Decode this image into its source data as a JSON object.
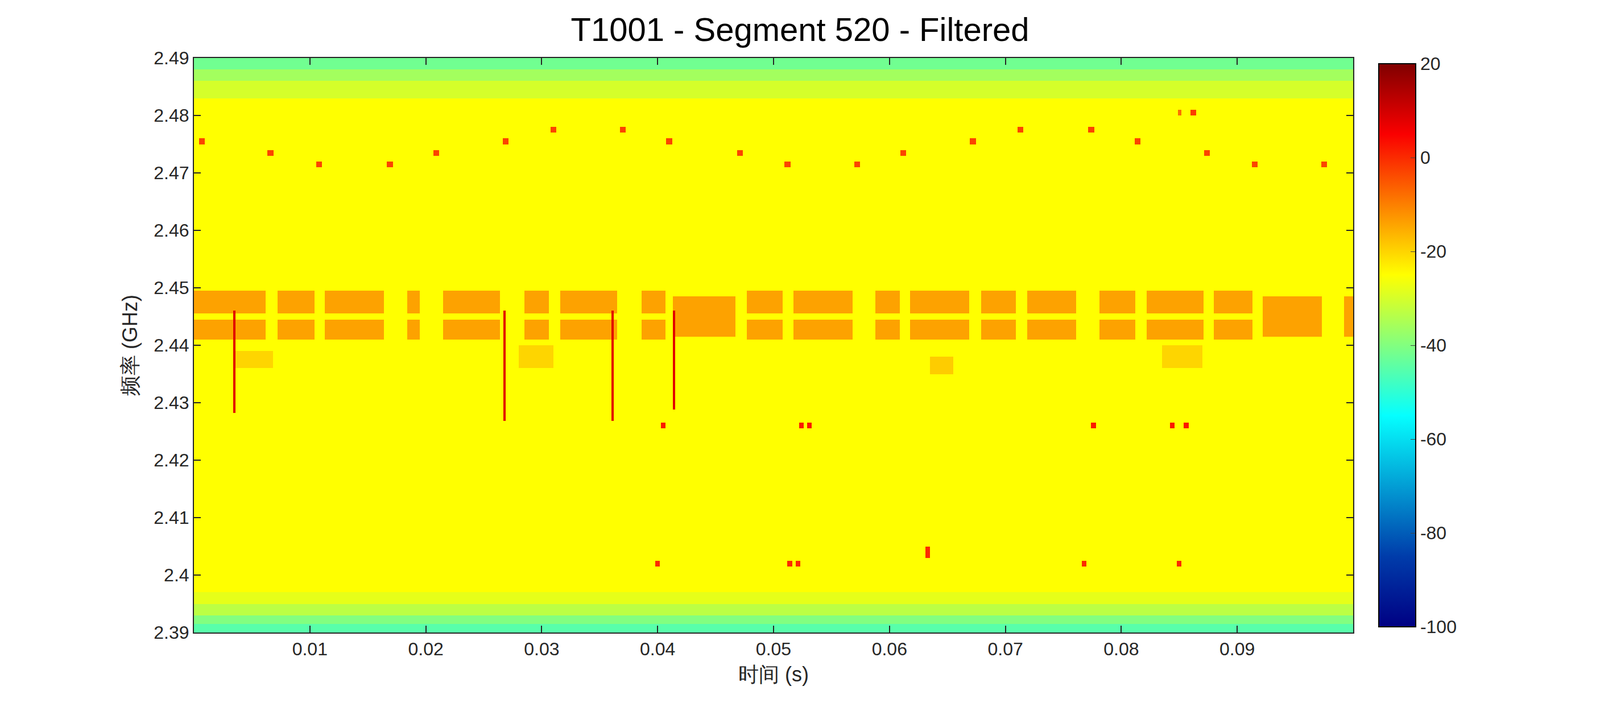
{
  "chart_data": {
    "type": "heatmap",
    "title": "T1001 - Segment 520 - Filtered",
    "x_label": "时间 (s)",
    "y_label": "频率 (GHz)",
    "xlim": [
      0,
      0.1
    ],
    "ylim": [
      2.39,
      2.49
    ],
    "xticks": [
      0.01,
      0.02,
      0.03,
      0.04,
      0.05,
      0.06,
      0.07,
      0.08,
      0.09
    ],
    "yticks": [
      2.39,
      2.4,
      2.41,
      2.42,
      2.43,
      2.44,
      2.45,
      2.46,
      2.47,
      2.48,
      2.49
    ],
    "grid": false,
    "color": "jet",
    "colorbar_lim": [
      -100,
      20
    ],
    "colorbar_ticks": [
      -100,
      -80,
      -60,
      -40,
      -20,
      0,
      20
    ],
    "cells": [
      {
        "x": [
          0,
          0.1
        ],
        "y": [
          2.39,
          2.3915
        ],
        "z": -45
      },
      {
        "x": [
          0,
          0.1
        ],
        "y": [
          2.3915,
          2.393
        ],
        "z": -40
      },
      {
        "x": [
          0,
          0.1
        ],
        "y": [
          2.393,
          2.395
        ],
        "z": -33
      },
      {
        "x": [
          0,
          0.1
        ],
        "y": [
          2.395,
          2.397
        ],
        "z": -28
      },
      {
        "x": [
          0,
          0.1
        ],
        "y": [
          2.397,
          2.483
        ],
        "z": -25
      },
      {
        "x": [
          0,
          0.1
        ],
        "y": [
          2.483,
          2.486
        ],
        "z": -30
      },
      {
        "x": [
          0,
          0.1
        ],
        "y": [
          2.486,
          2.488
        ],
        "z": -36
      },
      {
        "x": [
          0,
          0.1
        ],
        "y": [
          2.488,
          2.49
        ],
        "z": -42
      },
      {
        "x": [
          0.0035,
          0.0068
        ],
        "y": [
          2.436,
          2.439
        ],
        "z": -20
      },
      {
        "x": [
          0.028,
          0.031
        ],
        "y": [
          2.436,
          2.44
        ],
        "z": -20
      },
      {
        "x": [
          0.0635,
          0.0655
        ],
        "y": [
          2.435,
          2.438
        ],
        "z": -19
      },
      {
        "x": [
          0.0835,
          0.087
        ],
        "y": [
          2.436,
          2.44
        ],
        "z": -20
      },
      {
        "x": [
          0,
          0.0062
        ],
        "y": [
          2.4455,
          2.4495
        ],
        "z": -14
      },
      {
        "x": [
          0,
          0.0062
        ],
        "y": [
          2.441,
          2.4445
        ],
        "z": -14
      },
      {
        "x": [
          0.0072,
          0.0104
        ],
        "y": [
          2.4455,
          2.4495
        ],
        "z": -14
      },
      {
        "x": [
          0.0072,
          0.0104
        ],
        "y": [
          2.441,
          2.4445
        ],
        "z": -14
      },
      {
        "x": [
          0.0113,
          0.0164
        ],
        "y": [
          2.4455,
          2.4495
        ],
        "z": -14
      },
      {
        "x": [
          0.0113,
          0.0164
        ],
        "y": [
          2.441,
          2.4445
        ],
        "z": -14
      },
      {
        "x": [
          0.0184,
          0.0195
        ],
        "y": [
          2.4455,
          2.4495
        ],
        "z": -14
      },
      {
        "x": [
          0.0184,
          0.0195
        ],
        "y": [
          2.441,
          2.4445
        ],
        "z": -14
      },
      {
        "x": [
          0.0215,
          0.0264
        ],
        "y": [
          2.4455,
          2.4495
        ],
        "z": -14
      },
      {
        "x": [
          0.0215,
          0.0264
        ],
        "y": [
          2.441,
          2.4445
        ],
        "z": -14
      },
      {
        "x": [
          0.0285,
          0.0306
        ],
        "y": [
          2.4455,
          2.4495
        ],
        "z": -14
      },
      {
        "x": [
          0.0285,
          0.0306
        ],
        "y": [
          2.441,
          2.4445
        ],
        "z": -14
      },
      {
        "x": [
          0.0316,
          0.0365
        ],
        "y": [
          2.4455,
          2.4495
        ],
        "z": -14
      },
      {
        "x": [
          0.0316,
          0.0365
        ],
        "y": [
          2.441,
          2.4445
        ],
        "z": -14
      },
      {
        "x": [
          0.0386,
          0.0407
        ],
        "y": [
          2.4455,
          2.4495
        ],
        "z": -14
      },
      {
        "x": [
          0.0386,
          0.0407
        ],
        "y": [
          2.441,
          2.4445
        ],
        "z": -14
      },
      {
        "x": [
          0.0413,
          0.0467
        ],
        "y": [
          2.4415,
          2.4485
        ],
        "z": -14
      },
      {
        "x": [
          0.0477,
          0.0508
        ],
        "y": [
          2.4455,
          2.4495
        ],
        "z": -14
      },
      {
        "x": [
          0.0477,
          0.0508
        ],
        "y": [
          2.441,
          2.4445
        ],
        "z": -14
      },
      {
        "x": [
          0.0517,
          0.0568
        ],
        "y": [
          2.4455,
          2.4495
        ],
        "z": -14
      },
      {
        "x": [
          0.0517,
          0.0568
        ],
        "y": [
          2.441,
          2.4445
        ],
        "z": -14
      },
      {
        "x": [
          0.0588,
          0.0609
        ],
        "y": [
          2.4455,
          2.4495
        ],
        "z": -14
      },
      {
        "x": [
          0.0588,
          0.0609
        ],
        "y": [
          2.441,
          2.4445
        ],
        "z": -14
      },
      {
        "x": [
          0.0618,
          0.0669
        ],
        "y": [
          2.4455,
          2.4495
        ],
        "z": -14
      },
      {
        "x": [
          0.0618,
          0.0669
        ],
        "y": [
          2.441,
          2.4445
        ],
        "z": -14
      },
      {
        "x": [
          0.0679,
          0.0709
        ],
        "y": [
          2.4455,
          2.4495
        ],
        "z": -14
      },
      {
        "x": [
          0.0679,
          0.0709
        ],
        "y": [
          2.441,
          2.4445
        ],
        "z": -14
      },
      {
        "x": [
          0.0719,
          0.0761
        ],
        "y": [
          2.4455,
          2.4495
        ],
        "z": -14
      },
      {
        "x": [
          0.0719,
          0.0761
        ],
        "y": [
          2.441,
          2.4445
        ],
        "z": -14
      },
      {
        "x": [
          0.0781,
          0.0812
        ],
        "y": [
          2.4455,
          2.4495
        ],
        "z": -14
      },
      {
        "x": [
          0.0781,
          0.0812
        ],
        "y": [
          2.441,
          2.4445
        ],
        "z": -14
      },
      {
        "x": [
          0.0822,
          0.0871
        ],
        "y": [
          2.4455,
          2.4495
        ],
        "z": -14
      },
      {
        "x": [
          0.0822,
          0.0871
        ],
        "y": [
          2.441,
          2.4445
        ],
        "z": -14
      },
      {
        "x": [
          0.088,
          0.0913
        ],
        "y": [
          2.4455,
          2.4495
        ],
        "z": -14
      },
      {
        "x": [
          0.088,
          0.0913
        ],
        "y": [
          2.441,
          2.4445
        ],
        "z": -14
      },
      {
        "x": [
          0.0922,
          0.0973
        ],
        "y": [
          2.4415,
          2.4485
        ],
        "z": -14
      },
      {
        "x": [
          0.0992,
          0.1
        ],
        "y": [
          2.4415,
          2.4485
        ],
        "z": -14
      },
      {
        "x": [
          0.00045,
          0.00095
        ],
        "y": [
          2.475,
          2.476
        ],
        "z": -3
      },
      {
        "x": [
          0.00635,
          0.00685
        ],
        "y": [
          2.473,
          2.474
        ],
        "z": -3
      },
      {
        "x": [
          0.01055,
          0.01105
        ],
        "y": [
          2.471,
          2.472
        ],
        "z": -3
      },
      {
        "x": [
          0.01665,
          0.01715
        ],
        "y": [
          2.471,
          2.472
        ],
        "z": -3
      },
      {
        "x": [
          0.02065,
          0.02115
        ],
        "y": [
          2.473,
          2.474
        ],
        "z": -3
      },
      {
        "x": [
          0.02665,
          0.02715
        ],
        "y": [
          2.475,
          2.476
        ],
        "z": -3
      },
      {
        "x": [
          0.03075,
          0.03125
        ],
        "y": [
          2.477,
          2.478
        ],
        "z": -3
      },
      {
        "x": [
          0.03675,
          0.03725
        ],
        "y": [
          2.477,
          2.478
        ],
        "z": -3
      },
      {
        "x": [
          0.04075,
          0.04125
        ],
        "y": [
          2.475,
          2.476
        ],
        "z": -3
      },
      {
        "x": [
          0.04685,
          0.04735
        ],
        "y": [
          2.473,
          2.474
        ],
        "z": -3
      },
      {
        "x": [
          0.05095,
          0.05145
        ],
        "y": [
          2.471,
          2.472
        ],
        "z": -3
      },
      {
        "x": [
          0.05695,
          0.05745
        ],
        "y": [
          2.471,
          2.472
        ],
        "z": -3
      },
      {
        "x": [
          0.06095,
          0.06145
        ],
        "y": [
          2.473,
          2.474
        ],
        "z": -3
      },
      {
        "x": [
          0.06695,
          0.06745
        ],
        "y": [
          2.475,
          2.476
        ],
        "z": -3
      },
      {
        "x": [
          0.07105,
          0.07155
        ],
        "y": [
          2.477,
          2.478
        ],
        "z": -3
      },
      {
        "x": [
          0.07715,
          0.07765
        ],
        "y": [
          2.477,
          2.478
        ],
        "z": -3
      },
      {
        "x": [
          0.08115,
          0.08165
        ],
        "y": [
          2.475,
          2.476
        ],
        "z": -3
      },
      {
        "x": [
          0.08715,
          0.08765
        ],
        "y": [
          2.473,
          2.474
        ],
        "z": -3
      },
      {
        "x": [
          0.09125,
          0.09175
        ],
        "y": [
          2.471,
          2.472
        ],
        "z": -3
      },
      {
        "x": [
          0.09725,
          0.09775
        ],
        "y": [
          2.471,
          2.472
        ],
        "z": -3
      },
      {
        "x": [
          0.08595,
          0.08645
        ],
        "y": [
          2.48,
          2.481
        ],
        "z": -2
      },
      {
        "x": [
          0.0849,
          0.0852
        ],
        "y": [
          2.48,
          2.481
        ],
        "z": -8
      },
      {
        "x": [
          0.0403,
          0.0407
        ],
        "y": [
          2.4255,
          2.4265
        ],
        "z": 2
      },
      {
        "x": [
          0.0522,
          0.0526
        ],
        "y": [
          2.4255,
          2.4265
        ],
        "z": 2
      },
      {
        "x": [
          0.0529,
          0.0533
        ],
        "y": [
          2.4255,
          2.4265
        ],
        "z": 2
      },
      {
        "x": [
          0.0774,
          0.0778
        ],
        "y": [
          2.4255,
          2.4265
        ],
        "z": 2
      },
      {
        "x": [
          0.0842,
          0.0846
        ],
        "y": [
          2.4255,
          2.4265
        ],
        "z": 2
      },
      {
        "x": [
          0.0854,
          0.0858
        ],
        "y": [
          2.4255,
          2.4265
        ],
        "z": 2
      },
      {
        "x": [
          0.0398,
          0.0402
        ],
        "y": [
          2.4015,
          2.4025
        ],
        "z": 0
      },
      {
        "x": [
          0.0512,
          0.0516
        ],
        "y": [
          2.4015,
          2.4025
        ],
        "z": 0
      },
      {
        "x": [
          0.0519,
          0.0523
        ],
        "y": [
          2.4015,
          2.4025
        ],
        "z": 0
      },
      {
        "x": [
          0.0766,
          0.077
        ],
        "y": [
          2.4015,
          2.4025
        ],
        "z": 0
      },
      {
        "x": [
          0.0848,
          0.0852
        ],
        "y": [
          2.4015,
          2.4025
        ],
        "z": 0
      },
      {
        "x": [
          0.0631,
          0.0635
        ],
        "y": [
          2.403,
          2.405
        ],
        "z": 0
      },
      {
        "x": [
          0.0034,
          0.0036
        ],
        "y": [
          2.4282,
          2.446
        ],
        "z": 8
      },
      {
        "x": [
          0.0267,
          0.0269
        ],
        "y": [
          2.4268,
          2.446
        ],
        "z": 8
      },
      {
        "x": [
          0.036,
          0.0362
        ],
        "y": [
          2.4268,
          2.446
        ],
        "z": 8
      },
      {
        "x": [
          0.0413,
          0.0415
        ],
        "y": [
          2.4288,
          2.446
        ],
        "z": 8
      }
    ]
  }
}
